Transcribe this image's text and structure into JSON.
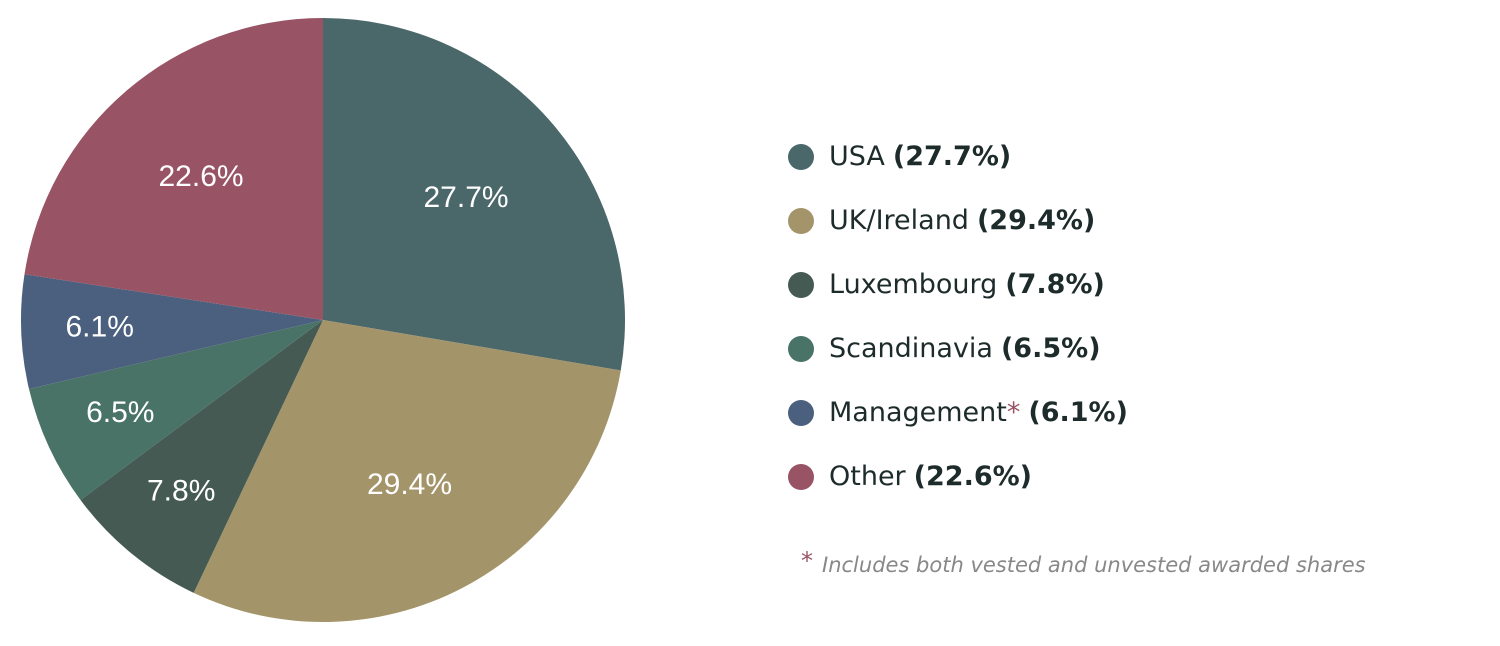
{
  "chart_data": {
    "type": "pie",
    "categories": [
      "USA",
      "UK/Ireland",
      "Luxembourg",
      "Scandinavia",
      "Management",
      "Other"
    ],
    "values": [
      27.7,
      29.4,
      7.8,
      6.5,
      6.1,
      22.6
    ],
    "value_labels": [
      "27.7%",
      "29.4%",
      "7.8%",
      "6.5%",
      "6.1%",
      "22.6%"
    ],
    "legend_labels": [
      "(27.7%)",
      "(29.4%)",
      "(7.8%)",
      "(6.5%)",
      "(6.1%)",
      "(22.6%)"
    ],
    "colors": [
      "#4a676a",
      "#a4946a",
      "#445a52",
      "#4a7367",
      "#4b5f7e",
      "#985365"
    ],
    "legend": "right",
    "footnote": {
      "marker": "*",
      "text": "Includes both vested and unvested awarded shares"
    }
  }
}
